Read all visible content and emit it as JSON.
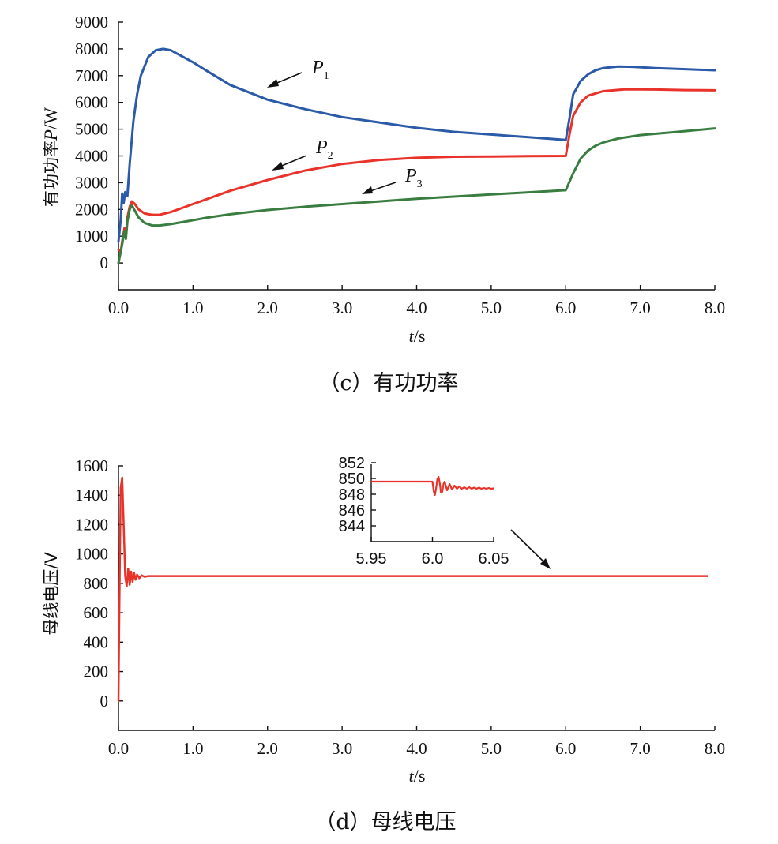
{
  "chart_data": [
    {
      "type": "line",
      "xlabel_var": "t",
      "xlabel_unit": "/s",
      "ylabel_text": "有功功率",
      "ylabel_var": "P",
      "ylabel_unit": "/W",
      "xlim": [
        0,
        8
      ],
      "ylim": [
        -1000,
        9000
      ],
      "xticks": [
        "0.0",
        "1.0",
        "2.0",
        "3.0",
        "4.0",
        "5.0",
        "6.0",
        "7.0",
        "8.0"
      ],
      "yticks": [
        "0",
        "1000",
        "2000",
        "3000",
        "4000",
        "5000",
        "6000",
        "7000",
        "8000",
        "9000"
      ],
      "caption": "（c）有功功率",
      "series": [
        {
          "name": "P1",
          "label_main": "P",
          "label_sub": "1",
          "color": "#2a5aa8",
          "x": [
            0,
            0.03,
            0.05,
            0.07,
            0.09,
            0.12,
            0.15,
            0.2,
            0.25,
            0.3,
            0.4,
            0.5,
            0.6,
            0.7,
            0.8,
            1.0,
            1.2,
            1.5,
            2.0,
            2.5,
            3.0,
            3.5,
            4.0,
            4.5,
            5.0,
            5.5,
            6.0,
            6.05,
            6.1,
            6.2,
            6.3,
            6.4,
            6.5,
            6.7,
            6.9,
            7.2,
            7.5,
            8.0
          ],
          "y": [
            800,
            1600,
            2600,
            2250,
            2650,
            2500,
            3700,
            5300,
            6300,
            7000,
            7700,
            7950,
            8000,
            7950,
            7800,
            7500,
            7150,
            6650,
            6100,
            5750,
            5450,
            5250,
            5050,
            4900,
            4800,
            4700,
            4600,
            5400,
            6300,
            6800,
            7050,
            7200,
            7280,
            7340,
            7330,
            7280,
            7250,
            7200
          ]
        },
        {
          "name": "P2",
          "label_main": "P",
          "label_sub": "2",
          "color": "#e8322a",
          "x": [
            0,
            0.03,
            0.05,
            0.08,
            0.1,
            0.12,
            0.15,
            0.18,
            0.22,
            0.27,
            0.35,
            0.45,
            0.55,
            0.7,
            0.9,
            1.2,
            1.5,
            2.0,
            2.5,
            3.0,
            3.5,
            4.0,
            4.5,
            5.0,
            5.5,
            6.0,
            6.05,
            6.1,
            6.2,
            6.3,
            6.5,
            6.8,
            7.2,
            7.6,
            8.0
          ],
          "y": [
            500,
            400,
            800,
            1300,
            1000,
            1700,
            2100,
            2300,
            2200,
            2000,
            1850,
            1800,
            1800,
            1900,
            2100,
            2400,
            2700,
            3100,
            3450,
            3700,
            3850,
            3930,
            3970,
            3980,
            3990,
            4000,
            4800,
            5500,
            6000,
            6250,
            6420,
            6490,
            6480,
            6460,
            6450
          ]
        },
        {
          "name": "P3",
          "label_main": "P",
          "label_sub": "3",
          "color": "#3a7d40",
          "x": [
            0,
            0.03,
            0.05,
            0.08,
            0.1,
            0.12,
            0.15,
            0.18,
            0.22,
            0.27,
            0.35,
            0.45,
            0.55,
            0.7,
            0.9,
            1.2,
            1.5,
            2.0,
            2.5,
            3.0,
            3.5,
            4.0,
            4.5,
            5.0,
            5.5,
            6.0,
            6.1,
            6.2,
            6.3,
            6.4,
            6.5,
            6.7,
            7.0,
            7.5,
            8.0
          ],
          "y": [
            0,
            400,
            700,
            1200,
            900,
            1550,
            2000,
            2150,
            1950,
            1700,
            1500,
            1400,
            1400,
            1450,
            1550,
            1700,
            1820,
            1980,
            2100,
            2200,
            2300,
            2400,
            2480,
            2560,
            2640,
            2720,
            3350,
            3900,
            4200,
            4380,
            4500,
            4650,
            4780,
            4900,
            5030
          ]
        }
      ]
    },
    {
      "type": "line",
      "xlabel_var": "t",
      "xlabel_unit": "/s",
      "ylabel": "母线电压/V",
      "xlim": [
        0,
        8
      ],
      "ylim": [
        -200,
        1600
      ],
      "xticks": [
        "0.0",
        "1.0",
        "2.0",
        "3.0",
        "4.0",
        "5.0",
        "6.0",
        "7.0",
        "8.0"
      ],
      "yticks": [
        "0",
        "200",
        "400",
        "600",
        "800",
        "1000",
        "1200",
        "1400",
        "1600"
      ],
      "caption": "（d）母线电压",
      "series": [
        {
          "name": "母线电压",
          "color": "#e8322a",
          "x": [
            0,
            0.01,
            0.02,
            0.03,
            0.05,
            0.07,
            0.09,
            0.11,
            0.13,
            0.15,
            0.17,
            0.19,
            0.21,
            0.23,
            0.25,
            0.28,
            0.31,
            0.35,
            0.4,
            0.5,
            1.0,
            2.0,
            3.0,
            4.0,
            5.0,
            6.0,
            7.0,
            7.9
          ],
          "y": [
            0,
            500,
            1000,
            1450,
            1520,
            1200,
            850,
            780,
            900,
            790,
            880,
            810,
            870,
            825,
            860,
            835,
            855,
            845,
            850,
            850,
            850,
            850,
            850,
            850,
            850,
            850,
            850,
            850
          ]
        }
      ],
      "inset": {
        "xlim": [
          5.95,
          6.05
        ],
        "ylim": [
          842,
          852
        ],
        "xticks": [
          "5.95",
          "6.0",
          "6.05"
        ],
        "yticks": [
          "844",
          "846",
          "848",
          "850",
          "852"
        ],
        "series": {
          "color": "#e8322a",
          "x": [
            5.95,
            6.0,
            6.001,
            6.002,
            6.003,
            6.004,
            6.005,
            6.006,
            6.007,
            6.008,
            6.009,
            6.01,
            6.012,
            6.014,
            6.016,
            6.018,
            6.02,
            6.022,
            6.024,
            6.026,
            6.028,
            6.03,
            6.032,
            6.034,
            6.036,
            6.038,
            6.04,
            6.042,
            6.044,
            6.046,
            6.048,
            6.05
          ],
          "y": [
            849.6,
            849.6,
            848.4,
            847.9,
            848.8,
            849.9,
            850.2,
            849.4,
            848.2,
            848.3,
            849.3,
            849.6,
            848.5,
            849.3,
            848.6,
            849.1,
            848.7,
            849.0,
            848.7,
            848.9,
            848.7,
            848.9,
            848.7,
            848.85,
            848.7,
            848.85,
            848.7,
            848.8,
            848.7,
            848.8,
            848.7,
            848.75
          ]
        }
      }
    }
  ]
}
